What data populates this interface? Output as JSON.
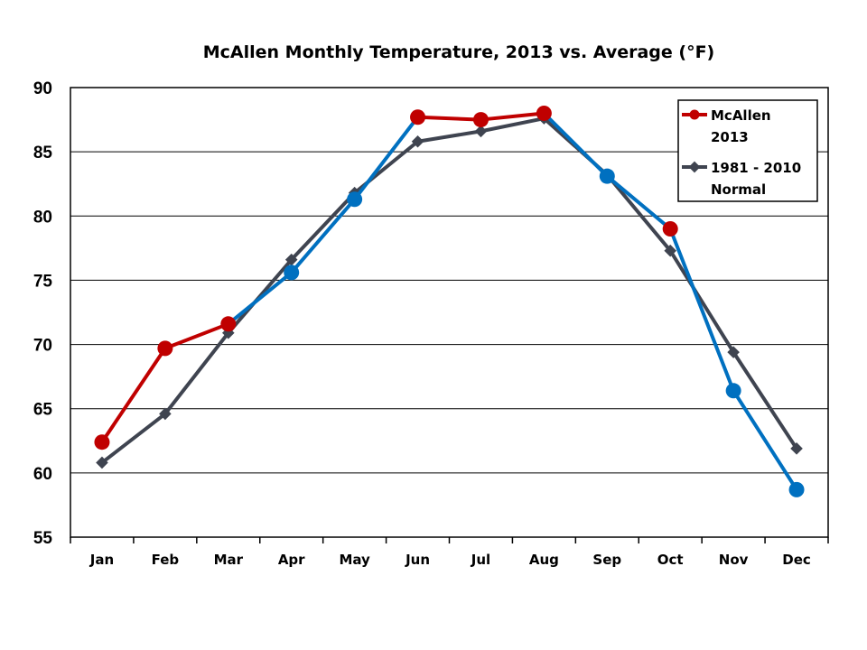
{
  "chart_data": {
    "type": "line",
    "title": "McAllen Monthly Temperature, 2013 vs. Average (°F)",
    "xlabel": "",
    "ylabel": "",
    "categories": [
      "Jan",
      "Feb",
      "Mar",
      "Apr",
      "May",
      "Jun",
      "Jul",
      "Aug",
      "Sep",
      "Oct",
      "Nov",
      "Dec"
    ],
    "ylim": [
      55,
      90
    ],
    "yticks": [
      55,
      60,
      65,
      70,
      75,
      80,
      85,
      90
    ],
    "grid": true,
    "legend_position": "top-right",
    "series": [
      {
        "name": "McAllen 2013",
        "legend_lines": [
          "McAllen",
          "2013"
        ],
        "values": [
          62.4,
          69.7,
          71.6,
          75.6,
          81.3,
          87.7,
          87.5,
          88.0,
          83.1,
          79.0,
          66.4,
          58.7
        ],
        "marker": "circle",
        "above_normal_color": "#c00000",
        "below_normal_color": "#0070c0"
      },
      {
        "name": "1981 - 2010 Normal",
        "legend_lines": [
          "1981 - 2010",
          "Normal"
        ],
        "values": [
          60.8,
          64.6,
          70.9,
          76.6,
          81.8,
          85.8,
          86.6,
          87.6,
          83.2,
          77.3,
          69.4,
          61.9
        ],
        "marker": "diamond",
        "color": "#3f4450"
      }
    ]
  }
}
